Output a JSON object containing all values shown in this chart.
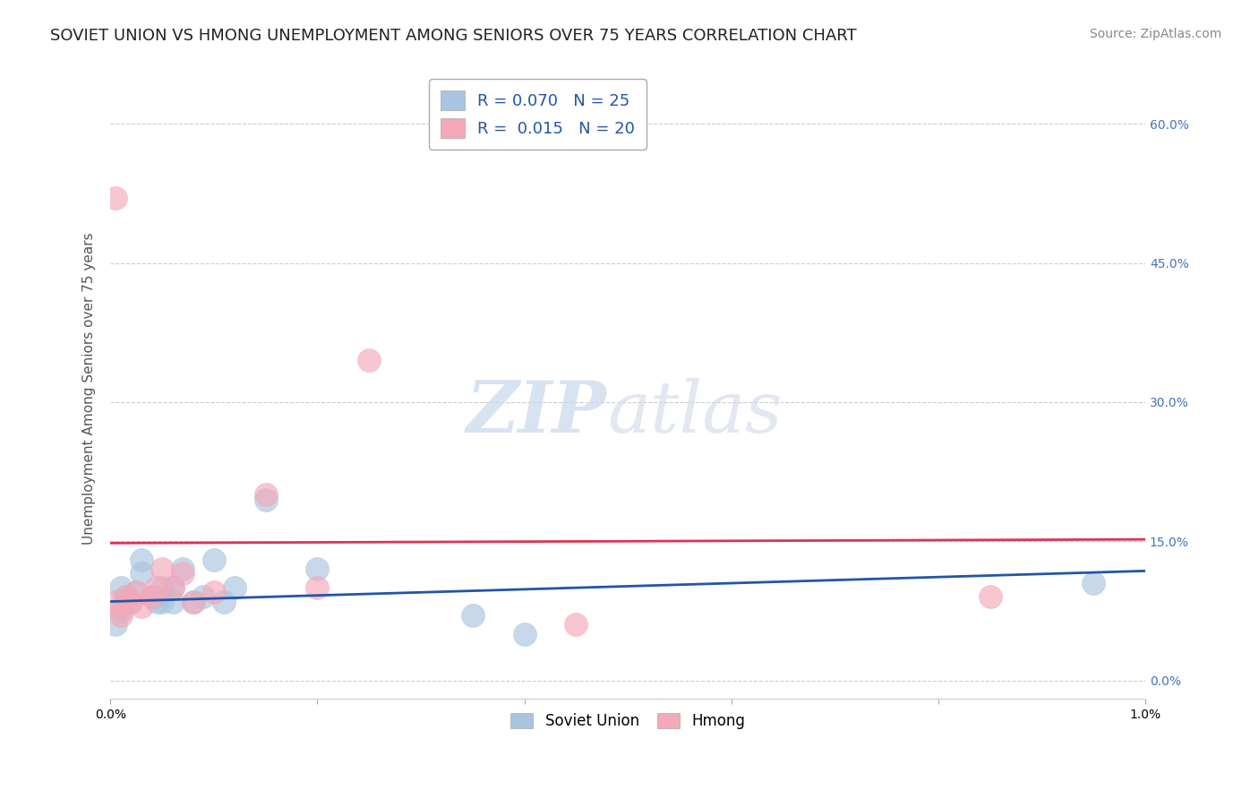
{
  "title": "SOVIET UNION VS HMONG UNEMPLOYMENT AMONG SENIORS OVER 75 YEARS CORRELATION CHART",
  "source": "Source: ZipAtlas.com",
  "ylabel": "Unemployment Among Seniors over 75 years",
  "xlim": [
    0.0,
    0.01
  ],
  "ylim": [
    -0.02,
    0.65
  ],
  "yticks": [
    0.0,
    0.15,
    0.3,
    0.45,
    0.6
  ],
  "ytick_labels": [
    "0.0%",
    "15.0%",
    "30.0%",
    "45.0%",
    "60.0%"
  ],
  "xticks": [
    0.0,
    0.002,
    0.004,
    0.006,
    0.008,
    0.01
  ],
  "xtick_labels": [
    "0.0%",
    "",
    "",
    "",
    "",
    "1.0%"
  ],
  "soviet_R": 0.07,
  "soviet_N": 25,
  "hmong_R": 0.015,
  "hmong_N": 20,
  "soviet_color": "#a8c4e0",
  "hmong_color": "#f4a8b8",
  "soviet_line_color": "#2255aa",
  "hmong_line_color": "#dd3355",
  "background_color": "#ffffff",
  "grid_color": "#cccccc",
  "soviet_x": [
    5e-05,
    0.0001,
    0.0001,
    0.00015,
    0.0002,
    0.00025,
    0.0003,
    0.0003,
    0.0004,
    0.00045,
    0.0005,
    0.0005,
    0.0006,
    0.0006,
    0.0007,
    0.0008,
    0.0009,
    0.001,
    0.0011,
    0.0012,
    0.0015,
    0.002,
    0.0035,
    0.004,
    0.0095
  ],
  "soviet_y": [
    0.06,
    0.1,
    0.075,
    0.09,
    0.085,
    0.095,
    0.13,
    0.115,
    0.09,
    0.085,
    0.1,
    0.085,
    0.1,
    0.085,
    0.12,
    0.085,
    0.09,
    0.13,
    0.085,
    0.1,
    0.195,
    0.12,
    0.07,
    0.05,
    0.105
  ],
  "hmong_x": [
    5e-05,
    0.0001,
    0.0001,
    0.00015,
    0.0002,
    0.00025,
    0.0003,
    0.0004,
    0.00045,
    0.0005,
    0.0006,
    0.0007,
    0.0008,
    0.001,
    0.0015,
    0.002,
    0.0025,
    5e-05,
    0.0045,
    0.0085
  ],
  "hmong_y": [
    0.085,
    0.08,
    0.07,
    0.09,
    0.085,
    0.095,
    0.08,
    0.09,
    0.1,
    0.12,
    0.1,
    0.115,
    0.085,
    0.095,
    0.2,
    0.1,
    0.345,
    0.52,
    0.06,
    0.09
  ],
  "title_color": "#222222",
  "source_color": "#888888",
  "axis_label_color": "#555555",
  "right_ytick_color": "#4472c4",
  "title_fontsize": 13,
  "source_fontsize": 10,
  "ylabel_fontsize": 11,
  "tick_fontsize": 10,
  "legend_fontsize": 13,
  "soviet_trend_x0": 0.0,
  "soviet_trend_y0": 0.085,
  "soviet_trend_x1": 0.01,
  "soviet_trend_y1": 0.118,
  "hmong_trend_x0": 0.0,
  "hmong_trend_y0": 0.148,
  "hmong_trend_x1": 0.01,
  "hmong_trend_y1": 0.152
}
